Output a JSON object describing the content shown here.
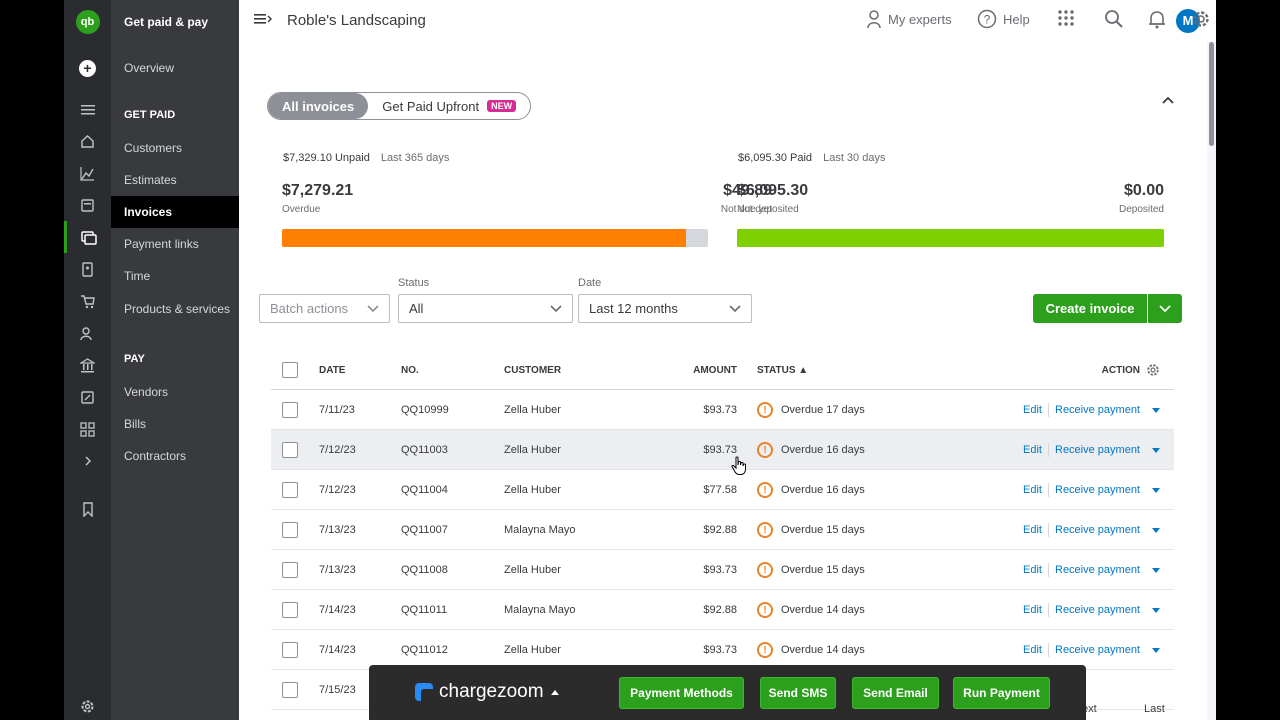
{
  "header": {
    "company": "Roble's Landscaping",
    "my_experts": "My experts",
    "help": "Help",
    "avatar": "M"
  },
  "nav": {
    "section_title": "Get paid & pay",
    "overview": "Overview",
    "get_paid_head": "GET PAID",
    "items": [
      "Customers",
      "Estimates",
      "Invoices",
      "Payment links",
      "Time",
      "Products & services"
    ],
    "pay_head": "PAY",
    "pay_items": [
      "Vendors",
      "Bills",
      "Contractors"
    ]
  },
  "tabs": {
    "all_invoices": "All invoices",
    "get_paid_upfront": "Get Paid Upfront",
    "new_badge": "NEW"
  },
  "summary": {
    "unpaid_total": "$7,329.10 Unpaid",
    "unpaid_period": "Last 365 days",
    "overdue_amount": "$7,279.21",
    "overdue_label": "Overdue",
    "notdue_amount": "$49.89",
    "notdue_label": "Not due yet",
    "paid_total": "$6,095.30 Paid",
    "paid_period": "Last 30 days",
    "notdeposited_amount": "$6,095.30",
    "notdeposited_label": "Not deposited",
    "deposited_amount": "$0.00",
    "deposited_label": "Deposited",
    "overdue_fraction": 0.9932,
    "notdeposited_fraction": 1.0,
    "colors": {
      "overdue": "#ff8000",
      "notdue": "#d4d7dc",
      "paid": "#7fd000"
    }
  },
  "filters": {
    "batch_actions": "Batch actions",
    "status_label": "Status",
    "status_value": "All",
    "date_label": "Date",
    "date_value": "Last 12 months",
    "create_invoice": "Create invoice"
  },
  "table": {
    "headers": {
      "date": "DATE",
      "no": "NO.",
      "customer": "CUSTOMER",
      "amount": "AMOUNT",
      "status": "STATUS ▲",
      "action": "ACTION"
    },
    "edit": "Edit",
    "receive": "Receive payment",
    "rows": [
      {
        "date": "7/11/23",
        "no": "QQ10999",
        "customer": "Zella Huber",
        "amount": "$93.73",
        "status": "Overdue 17 days"
      },
      {
        "date": "7/12/23",
        "no": "QQ11003",
        "customer": "Zella Huber",
        "amount": "$93.73",
        "status": "Overdue 16 days"
      },
      {
        "date": "7/12/23",
        "no": "QQ11004",
        "customer": "Zella Huber",
        "amount": "$77.58",
        "status": "Overdue 16 days"
      },
      {
        "date": "7/13/23",
        "no": "QQ11007",
        "customer": "Malayna Mayo",
        "amount": "$92.88",
        "status": "Overdue 15 days"
      },
      {
        "date": "7/13/23",
        "no": "QQ11008",
        "customer": "Zella Huber",
        "amount": "$93.73",
        "status": "Overdue 15 days"
      },
      {
        "date": "7/14/23",
        "no": "QQ11011",
        "customer": "Malayna Mayo",
        "amount": "$92.88",
        "status": "Overdue 14 days"
      },
      {
        "date": "7/14/23",
        "no": "QQ11012",
        "customer": "Zella Huber",
        "amount": "$93.73",
        "status": "Overdue 14 days"
      },
      {
        "date": "7/15/23",
        "no": "",
        "customer": "",
        "amount": "",
        "status": ""
      }
    ]
  },
  "chargezoom": {
    "brand": "chargezoom",
    "payment_methods": "Payment Methods",
    "send_sms": "Send SMS",
    "send_email": "Send Email",
    "run_payment": "Run Payment"
  },
  "pager": {
    "next": "ext",
    "last": "Last"
  }
}
